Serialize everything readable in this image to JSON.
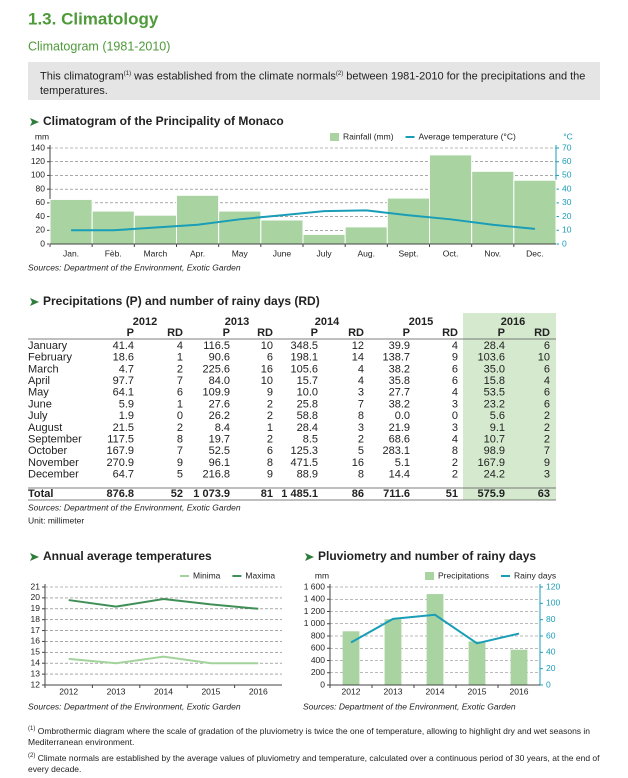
{
  "header": {
    "title": "1.3. Climatology",
    "subtitle": "Climatogram (1981-2010)"
  },
  "intro": [
    "This climatogram",
    "(1)",
    " was established from the climate normals",
    "(2)",
    " between 1981-2010 for the precipitations and the temperatures."
  ],
  "chart_data": [
    {
      "type": "combo",
      "title": "Climatogram of the Principality of Monaco",
      "ylabel": "mm",
      "y2label": "°C",
      "categories": [
        "Jan.",
        "Fèb.",
        "March",
        "Apr.",
        "May",
        "June",
        "July",
        "Aug.",
        "Sept.",
        "Oct.",
        "Nov.",
        "Dec."
      ],
      "series": [
        {
          "name": "Rainfall (mm)",
          "type": "bar",
          "color": "#a9d4a2",
          "values": [
            65,
            48,
            42,
            71,
            48,
            35,
            14,
            25,
            67,
            130,
            106,
            93
          ]
        },
        {
          "name": "Average temperature (°C)",
          "type": "line",
          "color": "#1a9db7",
          "axis": "y2",
          "values": [
            10,
            10,
            12,
            14,
            18,
            21,
            24,
            24.5,
            21,
            18,
            14,
            11
          ]
        }
      ],
      "ylim": [
        0,
        140
      ],
      "yticks": [
        0,
        20,
        40,
        60,
        80,
        100,
        120,
        140
      ],
      "y2lim": [
        0,
        70
      ],
      "y2ticks": [
        0,
        10,
        20,
        30,
        40,
        50,
        60,
        70
      ],
      "grid": true,
      "source": "Sources: Department of the Environment, Exotic Garden"
    },
    {
      "type": "line",
      "title": "Annual average temperatures",
      "categories": [
        "2012",
        "2013",
        "2014",
        "2015",
        "2016"
      ],
      "series": [
        {
          "name": "Minima",
          "type": "line",
          "color": "#a3d39c",
          "values": [
            14.4,
            14.0,
            14.6,
            14.0,
            14.0
          ]
        },
        {
          "name": "Maxima",
          "type": "line",
          "color": "#3f8f56",
          "values": [
            19.8,
            19.2,
            19.9,
            19.4,
            19.0
          ]
        }
      ],
      "ylim": [
        12,
        21
      ],
      "yticks": [
        12,
        13,
        14,
        15,
        16,
        17,
        18,
        19,
        20,
        21
      ],
      "grid": true,
      "source": "Sources: Department of the Environment, Exotic Garden"
    },
    {
      "type": "combo",
      "title": "Pluviometry and number of rainy days",
      "ylabel": "mm",
      "categories": [
        "2012",
        "2013",
        "2014",
        "2015",
        "2016"
      ],
      "series": [
        {
          "name": "Precipitations",
          "type": "bar",
          "color": "#a9d4a2",
          "values": [
            876.8,
            1073.9,
            1485.1,
            711.6,
            575.9
          ]
        },
        {
          "name": "Rainy days",
          "type": "line",
          "color": "#1a9db7",
          "axis": "y2",
          "values": [
            52,
            81,
            86,
            51,
            63
          ]
        }
      ],
      "ylim": [
        0,
        1600
      ],
      "yticks": [
        0,
        200,
        400,
        600,
        800,
        {
          "value": 1000,
          "label": "1 000"
        },
        {
          "value": 1200,
          "label": "1 200"
        },
        {
          "value": 1400,
          "label": "1 400"
        },
        {
          "value": 1600,
          "label": "1 600"
        }
      ],
      "y2lim": [
        0,
        120
      ],
      "y2ticks": [
        0,
        20,
        40,
        60,
        80,
        100,
        120
      ],
      "grid": true,
      "source": "Sources: Department of the Environment, Exotic Garden"
    }
  ],
  "table": {
    "title": "Precipitations (P) and number of rainy days (RD)",
    "years": [
      "2012",
      "2013",
      "2014",
      "2015",
      "2016"
    ],
    "subheaders": [
      "P",
      "RD",
      "P",
      "RD",
      "P",
      "RD",
      "P",
      "RD",
      "P",
      "RD"
    ],
    "rows": [
      [
        "January",
        "41.4",
        "4",
        "116.5",
        "10",
        "348.5",
        "12",
        "39.9",
        "4",
        "28.4",
        "6"
      ],
      [
        "February",
        "18.6",
        "1",
        "90.6",
        "6",
        "198.1",
        "14",
        "138.7",
        "9",
        "103.6",
        "10"
      ],
      [
        "March",
        "4.7",
        "2",
        "225.6",
        "16",
        "105.6",
        "4",
        "38.2",
        "6",
        "35.0",
        "6"
      ],
      [
        "April",
        "97.7",
        "7",
        "84.0",
        "10",
        "15.7",
        "4",
        "35.8",
        "6",
        "15.8",
        "4"
      ],
      [
        "May",
        "64.1",
        "6",
        "109.9",
        "9",
        "10.0",
        "3",
        "27.7",
        "4",
        "53.5",
        "6"
      ],
      [
        "June",
        "5.9",
        "1",
        "27.6",
        "2",
        "25.8",
        "7",
        "38.2",
        "3",
        "23.2",
        "6"
      ],
      [
        "July",
        "1.9",
        "0",
        "26.2",
        "2",
        "58.8",
        "8",
        "0.0",
        "0",
        "5.6",
        "2"
      ],
      [
        "August",
        "21.5",
        "2",
        "8.4",
        "1",
        "28.4",
        "3",
        "21.9",
        "3",
        "9.1",
        "2"
      ],
      [
        "September",
        "117.5",
        "8",
        "19.7",
        "2",
        "8.5",
        "2",
        "68.6",
        "4",
        "10.7",
        "2"
      ],
      [
        "October",
        "167.9",
        "7",
        "52.5",
        "6",
        "125.3",
        "5",
        "283.1",
        "8",
        "98.9",
        "7"
      ],
      [
        "November",
        "270.9",
        "9",
        "96.1",
        "8",
        "471.5",
        "16",
        "5.1",
        "2",
        "167.9",
        "9"
      ],
      [
        "December",
        "64.7",
        "5",
        "216.8",
        "9",
        "88.9",
        "8",
        "14.4",
        "2",
        "24.2",
        "3"
      ],
      [
        "Total",
        "876.8",
        "52",
        "1 073.9",
        "81",
        "1 485.1",
        "86",
        "711.6",
        "51",
        "575.9",
        "63"
      ]
    ],
    "source": "Sources: Department of the Environment, Exotic Garden",
    "unit": "Unit: millimeter"
  },
  "footnotes": [
    {
      "mark": "(1)",
      "text": "Ombrothermic diagram where the scale of gradation of the pluviometry is twice the one of temperature, allowing to highlight dry and wet seasons in Mediterranean environment."
    },
    {
      "mark": "(2)",
      "text": "Climate normals are established by the average values of pluviometry and temperature, calculated over a continuous period of 30 years, at the end of every decade."
    }
  ]
}
